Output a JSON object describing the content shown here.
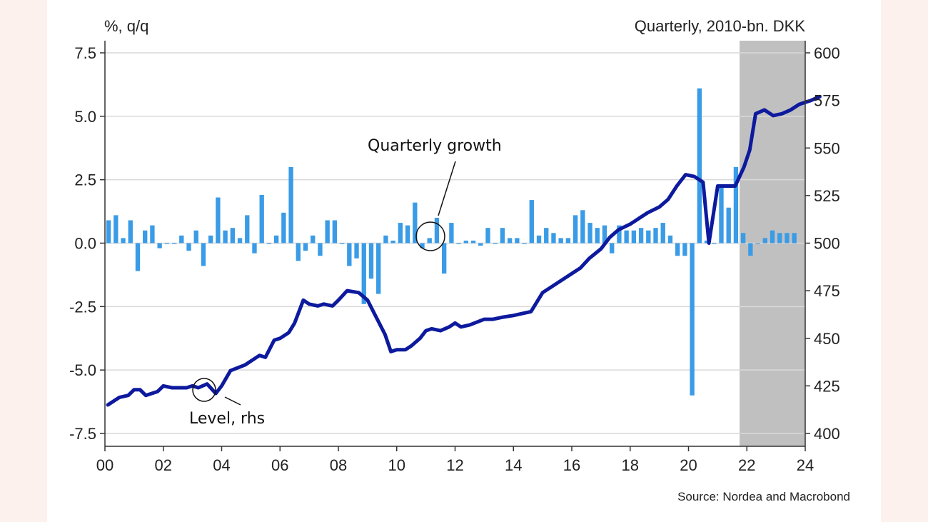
{
  "chart_data": {
    "type": "bar+line",
    "left_axis_unit": "%, q/q",
    "right_axis_unit": "Quarterly, 2010-bn. DKK",
    "source": "Source: Nordea and Macrobond",
    "x_ticks": [
      "00",
      "02",
      "04",
      "06",
      "08",
      "10",
      "12",
      "14",
      "16",
      "18",
      "20",
      "22",
      "24"
    ],
    "x_range": [
      2000,
      2024
    ],
    "left_ylim": [
      -7.5,
      7.5
    ],
    "left_ticks": [
      "7.5",
      "5.0",
      "2.5",
      "0.0",
      "-2.5",
      "-5.0",
      "-7.5"
    ],
    "right_ylim": [
      400,
      600
    ],
    "right_ticks": [
      "600",
      "575",
      "550",
      "525",
      "500",
      "475",
      "450",
      "425",
      "400"
    ],
    "forecast_shading_start": 2021.75,
    "annotations": {
      "bars": "Quarterly growth",
      "line": "Level, rhs"
    },
    "colors": {
      "bars": "#3a9be6",
      "line": "#0d1a9e",
      "shading": "#c0c0c0",
      "grid": "#d9d9d9"
    },
    "series": [
      {
        "name": "Quarterly growth",
        "kind": "bar",
        "axis": "left",
        "values": [
          0.9,
          1.1,
          0.2,
          0.9,
          -1.1,
          0.5,
          0.7,
          -0.2,
          0.0,
          0.0,
          0.3,
          -0.3,
          0.5,
          -0.9,
          0.3,
          1.8,
          0.5,
          0.6,
          0.2,
          1.1,
          -0.4,
          1.9,
          0.0,
          0.3,
          1.2,
          3.0,
          -0.7,
          -0.3,
          0.3,
          -0.5,
          0.9,
          0.9,
          0.0,
          -0.9,
          -0.6,
          -2.4,
          -1.4,
          -2.0,
          0.3,
          0.1,
          0.8,
          0.7,
          1.6,
          -0.2,
          0.2,
          1.0,
          -1.2,
          0.8,
          0.0,
          0.1,
          0.1,
          -0.1,
          0.6,
          0.0,
          0.6,
          0.2,
          0.2,
          0.0,
          1.7,
          0.3,
          0.6,
          0.4,
          0.2,
          0.2,
          1.1,
          1.3,
          0.8,
          0.6,
          0.7,
          -0.4,
          0.7,
          0.5,
          0.5,
          0.6,
          0.5,
          0.6,
          0.8,
          0.3,
          -0.5,
          -0.5,
          -6.0,
          6.1,
          0.1,
          0.0,
          2.3,
          1.4,
          3.0,
          0.4,
          -0.5,
          0.0,
          0.2,
          0.5,
          0.4,
          0.4,
          0.4
        ]
      },
      {
        "name": "Level, rhs",
        "kind": "line",
        "axis": "right",
        "points": [
          [
            2000.1,
            415
          ],
          [
            2000.5,
            419
          ],
          [
            2000.8,
            420
          ],
          [
            2001.0,
            423
          ],
          [
            2001.2,
            423
          ],
          [
            2001.4,
            420
          ],
          [
            2001.8,
            422
          ],
          [
            2002.0,
            425
          ],
          [
            2002.3,
            424
          ],
          [
            2002.8,
            424
          ],
          [
            2003.0,
            425
          ],
          [
            2003.2,
            424
          ],
          [
            2003.5,
            426
          ],
          [
            2003.8,
            421
          ],
          [
            2004.0,
            425
          ],
          [
            2004.3,
            433
          ],
          [
            2004.8,
            436
          ],
          [
            2005.0,
            438
          ],
          [
            2005.3,
            441
          ],
          [
            2005.5,
            440
          ],
          [
            2005.8,
            449
          ],
          [
            2006.0,
            450
          ],
          [
            2006.3,
            453
          ],
          [
            2006.5,
            458
          ],
          [
            2006.8,
            470
          ],
          [
            2007.0,
            468
          ],
          [
            2007.3,
            467
          ],
          [
            2007.5,
            468
          ],
          [
            2007.8,
            467
          ],
          [
            2008.0,
            470
          ],
          [
            2008.3,
            475
          ],
          [
            2008.7,
            474
          ],
          [
            2009.0,
            470
          ],
          [
            2009.3,
            461
          ],
          [
            2009.6,
            452
          ],
          [
            2009.8,
            443
          ],
          [
            2010.0,
            444
          ],
          [
            2010.3,
            444
          ],
          [
            2010.5,
            446
          ],
          [
            2010.8,
            450
          ],
          [
            2011.0,
            454
          ],
          [
            2011.2,
            455
          ],
          [
            2011.5,
            454
          ],
          [
            2011.8,
            456
          ],
          [
            2012.0,
            458
          ],
          [
            2012.2,
            456
          ],
          [
            2012.5,
            457
          ],
          [
            2013.0,
            460
          ],
          [
            2013.3,
            460
          ],
          [
            2013.6,
            461
          ],
          [
            2014.0,
            462
          ],
          [
            2014.3,
            463
          ],
          [
            2014.6,
            464
          ],
          [
            2015.0,
            474
          ],
          [
            2015.3,
            477
          ],
          [
            2015.6,
            480
          ],
          [
            2016.0,
            484
          ],
          [
            2016.3,
            487
          ],
          [
            2016.6,
            492
          ],
          [
            2017.0,
            497
          ],
          [
            2017.3,
            503
          ],
          [
            2017.6,
            507
          ],
          [
            2018.0,
            510
          ],
          [
            2018.3,
            513
          ],
          [
            2018.6,
            516
          ],
          [
            2019.0,
            519
          ],
          [
            2019.3,
            523
          ],
          [
            2019.6,
            530
          ],
          [
            2019.9,
            536
          ],
          [
            2020.2,
            535
          ],
          [
            2020.5,
            532
          ],
          [
            2020.7,
            500
          ],
          [
            2021.0,
            530
          ],
          [
            2021.3,
            530
          ],
          [
            2021.6,
            530
          ],
          [
            2021.9,
            540
          ],
          [
            2022.1,
            549
          ],
          [
            2022.3,
            568
          ],
          [
            2022.6,
            570
          ],
          [
            2022.9,
            567
          ],
          [
            2023.2,
            568
          ],
          [
            2023.5,
            570
          ],
          [
            2023.8,
            573
          ],
          [
            2024.2,
            575
          ],
          [
            2024.5,
            577
          ]
        ]
      }
    ]
  }
}
